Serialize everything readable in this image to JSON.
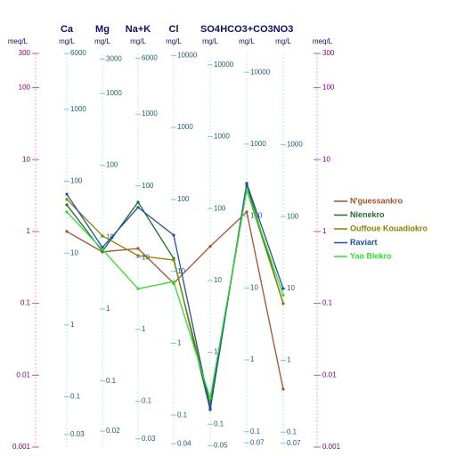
{
  "chart_data": {
    "type": "line",
    "categories": [
      "Ca",
      "Mg",
      "Na+K",
      "Cl",
      "SO4",
      "HCO3+CO3",
      "NO3"
    ],
    "category_units": [
      "mg/L",
      "mg/L",
      "mg/L",
      "mg/L",
      "mg/L",
      "mg/L",
      "mg/L"
    ],
    "ylabel": "meq/L",
    "ylabel_right": "meq/L",
    "ylim": [
      0.001,
      300
    ],
    "yticks": [
      300,
      100,
      10,
      1,
      0.1,
      0.01,
      0.001
    ],
    "y2lim": [
      0.001,
      300
    ],
    "y2ticks": [
      300,
      100,
      10,
      1,
      0.1,
      0.01,
      0.001
    ],
    "log_scale": true,
    "column_axes": [
      {
        "ylim": [
          0.02,
          6000
        ],
        "ticks": [
          6000,
          1000,
          100,
          10,
          1,
          0.1,
          0.03
        ]
      },
      {
        "ylim": [
          0.012,
          3600
        ],
        "ticks": [
          3000,
          1000,
          100,
          10,
          1,
          0.1,
          0.02
        ]
      },
      {
        "ylim": [
          0.023,
          7000
        ],
        "ticks": [
          6000,
          1000,
          100,
          10,
          1,
          0.1,
          0.03
        ]
      },
      {
        "ylim": [
          0.036,
          10700
        ],
        "ticks": [
          10000,
          1000,
          100,
          10,
          1,
          0.1,
          0.04
        ]
      },
      {
        "ylim": [
          0.048,
          14400
        ],
        "ticks": [
          10000,
          1000,
          100,
          10,
          1,
          0.1,
          0.05
        ]
      },
      {
        "ylim": [
          0.061,
          18300
        ],
        "ticks": [
          10000,
          1000,
          100,
          10,
          1,
          0.1,
          0.07
        ]
      },
      {
        "ylim": [
          0.062,
          18600
        ],
        "ticks": [
          1000,
          100,
          10,
          1,
          0.1,
          0.07
        ]
      }
    ],
    "series": [
      {
        "name": "N'guessankro",
        "color": "#a0522d",
        "values": [
          1.0,
          0.52,
          0.58,
          0.19,
          0.62,
          1.87,
          0.0064
        ]
      },
      {
        "name": "Nienekro",
        "color": "#1e6b2e",
        "values": [
          2.35,
          0.53,
          2.56,
          0.42,
          0.0033,
          4.5,
          0.099
        ]
      },
      {
        "name": "Ouffoue Kouadiokro",
        "color": "#8b8000",
        "values": [
          2.8,
          0.87,
          0.46,
          0.4,
          0.0041,
          3.8,
          0.1
        ]
      },
      {
        "name": "Raviart",
        "color": "#1f4fa8",
        "values": [
          3.3,
          0.6,
          2.16,
          0.89,
          0.0035,
          4.7,
          0.16
        ]
      },
      {
        "name": "Yao Blekro",
        "color": "#33dd33",
        "values": [
          1.87,
          0.56,
          0.16,
          0.2,
          0.0048,
          3.8,
          0.13
        ]
      }
    ]
  }
}
